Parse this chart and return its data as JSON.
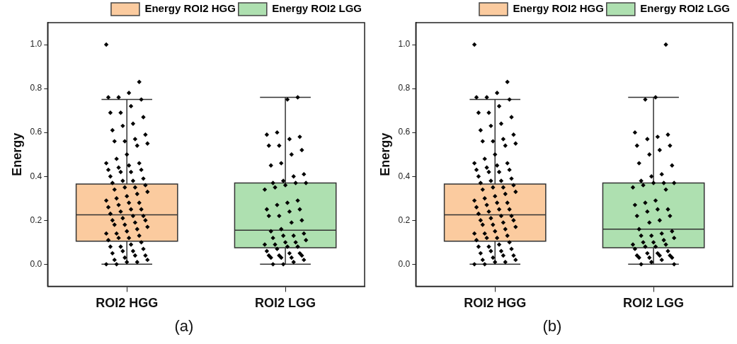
{
  "chart_data": [
    {
      "type": "box",
      "categories": [
        "ROI2 HGG",
        "ROI2 LGG"
      ],
      "ylabel": "Energy",
      "ylim": [
        -0.1,
        1.1
      ],
      "yticks": [
        {
          "value": 0,
          "label": "0.0"
        },
        {
          "value": 0.2,
          "label": "0.2"
        },
        {
          "value": 0.4,
          "label": "0.4"
        },
        {
          "value": 0.6,
          "label": "0.6"
        },
        {
          "value": 0.8,
          "label": "0.8"
        },
        {
          "value": 1,
          "label": "1.0"
        }
      ],
      "grid": false,
      "legend": "top right",
      "annotations": [
        "(a)"
      ],
      "series": [
        {
          "name": "Energy ROI2 HGG",
          "color": "#fbcb9f",
          "boxes": [
            {
              "low": 0,
              "q1": 0.105,
              "median": 0.225,
              "q3": 0.365,
              "high": 0.75
            },
            null
          ]
        },
        {
          "name": "Energy ROI2 LGG",
          "color": "#aee0b0",
          "boxes": [
            null,
            {
              "low": 0,
              "q1": 0.075,
              "median": 0.155,
              "q3": 0.37,
              "high": 0.76
            }
          ]
        },
        {
          "type": "scatter",
          "color": "#000000",
          "marker": "diamond",
          "x": [
            "ROI2 HGG",
            "ROI2 HGG",
            "ROI2 HGG",
            "ROI2 HGG",
            "ROI2 HGG",
            "ROI2 HGG",
            "ROI2 HGG",
            "ROI2 HGG",
            "ROI2 HGG",
            "ROI2 HGG",
            "ROI2 HGG",
            "ROI2 HGG",
            "ROI2 HGG",
            "ROI2 HGG",
            "ROI2 HGG",
            "ROI2 HGG",
            "ROI2 HGG",
            "ROI2 HGG",
            "ROI2 HGG",
            "ROI2 HGG",
            "ROI2 HGG",
            "ROI2 HGG",
            "ROI2 HGG",
            "ROI2 HGG",
            "ROI2 HGG",
            "ROI2 HGG",
            "ROI2 HGG",
            "ROI2 HGG",
            "ROI2 HGG",
            "ROI2 HGG",
            "ROI2 HGG",
            "ROI2 HGG",
            "ROI2 HGG",
            "ROI2 HGG",
            "ROI2 HGG",
            "ROI2 HGG",
            "ROI2 HGG",
            "ROI2 HGG",
            "ROI2 HGG",
            "ROI2 HGG",
            "ROI2 HGG",
            "ROI2 HGG",
            "ROI2 HGG",
            "ROI2 HGG",
            "ROI2 HGG",
            "ROI2 HGG",
            "ROI2 HGG",
            "ROI2 HGG",
            "ROI2 HGG",
            "ROI2 HGG",
            "ROI2 HGG",
            "ROI2 HGG",
            "ROI2 HGG",
            "ROI2 HGG",
            "ROI2 HGG",
            "ROI2 HGG",
            "ROI2 HGG",
            "ROI2 HGG",
            "ROI2 HGG",
            "ROI2 HGG",
            "ROI2 HGG",
            "ROI2 HGG",
            "ROI2 HGG",
            "ROI2 HGG",
            "ROI2 HGG",
            "ROI2 HGG",
            "ROI2 HGG",
            "ROI2 HGG",
            "ROI2 HGG",
            "ROI2 HGG",
            "ROI2 HGG",
            "ROI2 HGG",
            "ROI2 HGG",
            "ROI2 HGG",
            "ROI2 HGG",
            "ROI2 HGG",
            "ROI2 HGG",
            "ROI2 HGG",
            "ROI2 HGG",
            "ROI2 HGG",
            "ROI2 HGG",
            "ROI2 HGG",
            "ROI2 HGG",
            "ROI2 HGG",
            "ROI2 HGG",
            "ROI2 LGG",
            "ROI2 LGG",
            "ROI2 LGG",
            "ROI2 LGG",
            "ROI2 LGG",
            "ROI2 LGG",
            "ROI2 LGG",
            "ROI2 LGG",
            "ROI2 LGG",
            "ROI2 LGG",
            "ROI2 LGG",
            "ROI2 LGG",
            "ROI2 LGG",
            "ROI2 LGG",
            "ROI2 LGG",
            "ROI2 LGG",
            "ROI2 LGG",
            "ROI2 LGG",
            "ROI2 LGG",
            "ROI2 LGG",
            "ROI2 LGG",
            "ROI2 LGG",
            "ROI2 LGG",
            "ROI2 LGG",
            "ROI2 LGG",
            "ROI2 LGG",
            "ROI2 LGG",
            "ROI2 LGG",
            "ROI2 LGG",
            "ROI2 LGG",
            "ROI2 LGG",
            "ROI2 LGG",
            "ROI2 LGG",
            "ROI2 LGG",
            "ROI2 LGG",
            "ROI2 LGG",
            "ROI2 LGG",
            "ROI2 LGG",
            "ROI2 LGG",
            "ROI2 LGG",
            "ROI2 LGG",
            "ROI2 LGG",
            "ROI2 LGG",
            "ROI2 LGG",
            "ROI2 LGG",
            "ROI2 LGG",
            "ROI2 LGG",
            "ROI2 LGG",
            "ROI2 LGG",
            "ROI2 LGG",
            "ROI2 LGG",
            "ROI2 LGG",
            "ROI2 LGG",
            "ROI2 LGG",
            "ROI2 LGG",
            "ROI2 LGG",
            "ROI2 LGG",
            "ROI2 LGG"
          ],
          "values": [
            1.0,
            0.83,
            0.78,
            0.76,
            0.76,
            0.75,
            0.72,
            0.69,
            0.69,
            0.67,
            0.64,
            0.63,
            0.61,
            0.59,
            0.57,
            0.56,
            0.56,
            0.55,
            0.54,
            0.5,
            0.48,
            0.46,
            0.46,
            0.45,
            0.44,
            0.43,
            0.43,
            0.42,
            0.42,
            0.4,
            0.39,
            0.38,
            0.38,
            0.37,
            0.36,
            0.35,
            0.35,
            0.34,
            0.33,
            0.32,
            0.31,
            0.3,
            0.29,
            0.28,
            0.28,
            0.27,
            0.26,
            0.25,
            0.25,
            0.24,
            0.23,
            0.22,
            0.22,
            0.21,
            0.2,
            0.2,
            0.19,
            0.18,
            0.18,
            0.17,
            0.16,
            0.15,
            0.14,
            0.14,
            0.13,
            0.12,
            0.12,
            0.11,
            0.1,
            0.09,
            0.08,
            0.08,
            0.07,
            0.06,
            0.06,
            0.05,
            0.04,
            0.04,
            0.03,
            0.02,
            0.02,
            0.01,
            0.01,
            0.0,
            0.0,
            0.76,
            0.75,
            0.6,
            0.59,
            0.58,
            0.57,
            0.54,
            0.54,
            0.52,
            0.5,
            0.46,
            0.45,
            0.41,
            0.4,
            0.38,
            0.37,
            0.37,
            0.37,
            0.36,
            0.35,
            0.34,
            0.29,
            0.28,
            0.27,
            0.25,
            0.25,
            0.24,
            0.22,
            0.22,
            0.2,
            0.19,
            0.16,
            0.15,
            0.14,
            0.13,
            0.13,
            0.12,
            0.11,
            0.1,
            0.1,
            0.09,
            0.09,
            0.08,
            0.08,
            0.07,
            0.06,
            0.05,
            0.05,
            0.04,
            0.04,
            0.04,
            0.03,
            0.03,
            0.03,
            0.02,
            0.01,
            0.0,
            0.0
          ]
        }
      ]
    },
    {
      "type": "box",
      "categories": [
        "ROI2 HGG",
        "ROI2 LGG"
      ],
      "ylabel": "Energy",
      "ylim": [
        -0.1,
        1.1
      ],
      "yticks": [
        {
          "value": 0,
          "label": "0.0"
        },
        {
          "value": 0.2,
          "label": "0.2"
        },
        {
          "value": 0.4,
          "label": "0.4"
        },
        {
          "value": 0.6,
          "label": "0.6"
        },
        {
          "value": 0.8,
          "label": "0.8"
        },
        {
          "value": 1,
          "label": "1.0"
        }
      ],
      "grid": false,
      "legend": "top right",
      "annotations": [
        "(b)"
      ],
      "series": [
        {
          "name": "Energy ROI2 HGG",
          "color": "#fbcb9f",
          "boxes": [
            {
              "low": 0,
              "q1": 0.105,
              "median": 0.225,
              "q3": 0.365,
              "high": 0.75
            },
            null
          ]
        },
        {
          "name": "Energy ROI2 LGG",
          "color": "#aee0b0",
          "boxes": [
            null,
            {
              "low": 0,
              "q1": 0.075,
              "median": 0.16,
              "q3": 0.37,
              "high": 0.76
            }
          ]
        },
        {
          "type": "scatter",
          "color": "#000000",
          "marker": "diamond",
          "x": [
            "ROI2 HGG",
            "ROI2 HGG",
            "ROI2 HGG",
            "ROI2 HGG",
            "ROI2 HGG",
            "ROI2 HGG",
            "ROI2 HGG",
            "ROI2 HGG",
            "ROI2 HGG",
            "ROI2 HGG",
            "ROI2 HGG",
            "ROI2 HGG",
            "ROI2 HGG",
            "ROI2 HGG",
            "ROI2 HGG",
            "ROI2 HGG",
            "ROI2 HGG",
            "ROI2 HGG",
            "ROI2 HGG",
            "ROI2 HGG",
            "ROI2 HGG",
            "ROI2 HGG",
            "ROI2 HGG",
            "ROI2 HGG",
            "ROI2 HGG",
            "ROI2 HGG",
            "ROI2 HGG",
            "ROI2 HGG",
            "ROI2 HGG",
            "ROI2 HGG",
            "ROI2 HGG",
            "ROI2 HGG",
            "ROI2 HGG",
            "ROI2 HGG",
            "ROI2 HGG",
            "ROI2 HGG",
            "ROI2 HGG",
            "ROI2 HGG",
            "ROI2 HGG",
            "ROI2 HGG",
            "ROI2 HGG",
            "ROI2 HGG",
            "ROI2 HGG",
            "ROI2 HGG",
            "ROI2 HGG",
            "ROI2 HGG",
            "ROI2 HGG",
            "ROI2 HGG",
            "ROI2 HGG",
            "ROI2 HGG",
            "ROI2 HGG",
            "ROI2 HGG",
            "ROI2 HGG",
            "ROI2 HGG",
            "ROI2 HGG",
            "ROI2 HGG",
            "ROI2 HGG",
            "ROI2 HGG",
            "ROI2 HGG",
            "ROI2 HGG",
            "ROI2 HGG",
            "ROI2 HGG",
            "ROI2 HGG",
            "ROI2 HGG",
            "ROI2 HGG",
            "ROI2 HGG",
            "ROI2 HGG",
            "ROI2 HGG",
            "ROI2 HGG",
            "ROI2 HGG",
            "ROI2 HGG",
            "ROI2 HGG",
            "ROI2 HGG",
            "ROI2 HGG",
            "ROI2 HGG",
            "ROI2 HGG",
            "ROI2 HGG",
            "ROI2 HGG",
            "ROI2 HGG",
            "ROI2 HGG",
            "ROI2 HGG",
            "ROI2 HGG",
            "ROI2 HGG",
            "ROI2 HGG",
            "ROI2 HGG",
            "ROI2 LGG",
            "ROI2 LGG",
            "ROI2 LGG",
            "ROI2 LGG",
            "ROI2 LGG",
            "ROI2 LGG",
            "ROI2 LGG",
            "ROI2 LGG",
            "ROI2 LGG",
            "ROI2 LGG",
            "ROI2 LGG",
            "ROI2 LGG",
            "ROI2 LGG",
            "ROI2 LGG",
            "ROI2 LGG",
            "ROI2 LGG",
            "ROI2 LGG",
            "ROI2 LGG",
            "ROI2 LGG",
            "ROI2 LGG",
            "ROI2 LGG",
            "ROI2 LGG",
            "ROI2 LGG",
            "ROI2 LGG",
            "ROI2 LGG",
            "ROI2 LGG",
            "ROI2 LGG",
            "ROI2 LGG",
            "ROI2 LGG",
            "ROI2 LGG",
            "ROI2 LGG",
            "ROI2 LGG",
            "ROI2 LGG",
            "ROI2 LGG",
            "ROI2 LGG",
            "ROI2 LGG",
            "ROI2 LGG",
            "ROI2 LGG",
            "ROI2 LGG",
            "ROI2 LGG",
            "ROI2 LGG",
            "ROI2 LGG",
            "ROI2 LGG",
            "ROI2 LGG",
            "ROI2 LGG",
            "ROI2 LGG",
            "ROI2 LGG",
            "ROI2 LGG",
            "ROI2 LGG",
            "ROI2 LGG",
            "ROI2 LGG",
            "ROI2 LGG",
            "ROI2 LGG",
            "ROI2 LGG",
            "ROI2 LGG",
            "ROI2 LGG",
            "ROI2 LGG",
            "ROI2 LGG",
            "ROI2 LGG"
          ],
          "values": [
            1.0,
            0.83,
            0.78,
            0.76,
            0.76,
            0.75,
            0.72,
            0.69,
            0.69,
            0.67,
            0.64,
            0.63,
            0.61,
            0.59,
            0.57,
            0.56,
            0.56,
            0.55,
            0.54,
            0.5,
            0.48,
            0.46,
            0.46,
            0.45,
            0.44,
            0.43,
            0.43,
            0.42,
            0.42,
            0.4,
            0.39,
            0.38,
            0.38,
            0.37,
            0.36,
            0.35,
            0.35,
            0.34,
            0.33,
            0.32,
            0.31,
            0.3,
            0.29,
            0.28,
            0.28,
            0.27,
            0.26,
            0.25,
            0.25,
            0.24,
            0.23,
            0.22,
            0.22,
            0.21,
            0.2,
            0.2,
            0.19,
            0.18,
            0.18,
            0.17,
            0.16,
            0.15,
            0.14,
            0.14,
            0.13,
            0.12,
            0.12,
            0.11,
            0.1,
            0.09,
            0.08,
            0.08,
            0.07,
            0.06,
            0.06,
            0.05,
            0.04,
            0.04,
            0.03,
            0.02,
            0.02,
            0.01,
            0.01,
            0.0,
            0.0,
            1.0,
            0.76,
            0.75,
            0.6,
            0.59,
            0.58,
            0.57,
            0.54,
            0.54,
            0.52,
            0.5,
            0.46,
            0.45,
            0.41,
            0.4,
            0.38,
            0.37,
            0.37,
            0.37,
            0.36,
            0.35,
            0.34,
            0.29,
            0.28,
            0.27,
            0.25,
            0.25,
            0.24,
            0.22,
            0.22,
            0.2,
            0.19,
            0.16,
            0.15,
            0.14,
            0.13,
            0.13,
            0.12,
            0.11,
            0.1,
            0.1,
            0.09,
            0.09,
            0.08,
            0.08,
            0.07,
            0.06,
            0.05,
            0.05,
            0.04,
            0.04,
            0.04,
            0.03,
            0.03,
            0.03,
            0.02,
            0.01,
            0.0,
            0.0
          ]
        }
      ]
    }
  ]
}
